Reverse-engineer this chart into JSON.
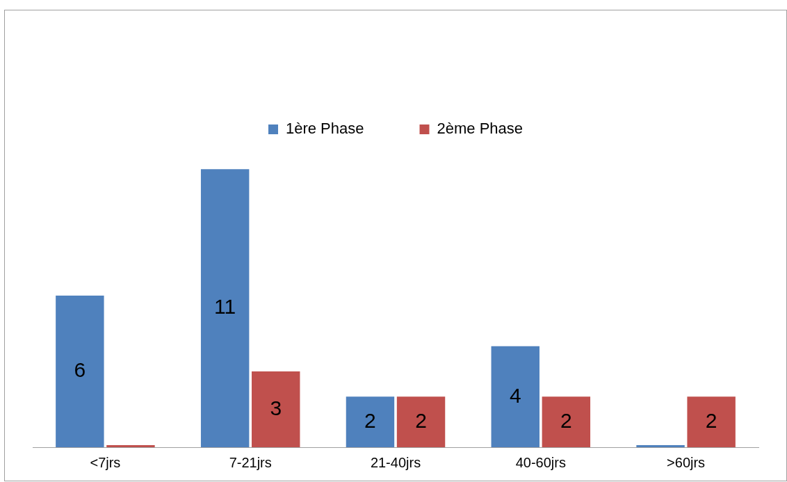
{
  "chart_data": {
    "type": "bar",
    "categories": [
      "<7jrs",
      "7-21jrs",
      "21-40jrs",
      "40-60jrs",
      ">60jrs"
    ],
    "series": [
      {
        "name": "1ère Phase",
        "color": "#4f81bd",
        "values": [
          6,
          11,
          2,
          4,
          0
        ],
        "value_labels": [
          "6",
          "11",
          "2",
          "4",
          null
        ]
      },
      {
        "name": "2ème Phase",
        "color": "#c0504d",
        "values": [
          0,
          3,
          2,
          2,
          2
        ],
        "value_labels": [
          null,
          "3",
          "2",
          "2",
          "2"
        ]
      }
    ],
    "legend": "top",
    "grid": false
  }
}
